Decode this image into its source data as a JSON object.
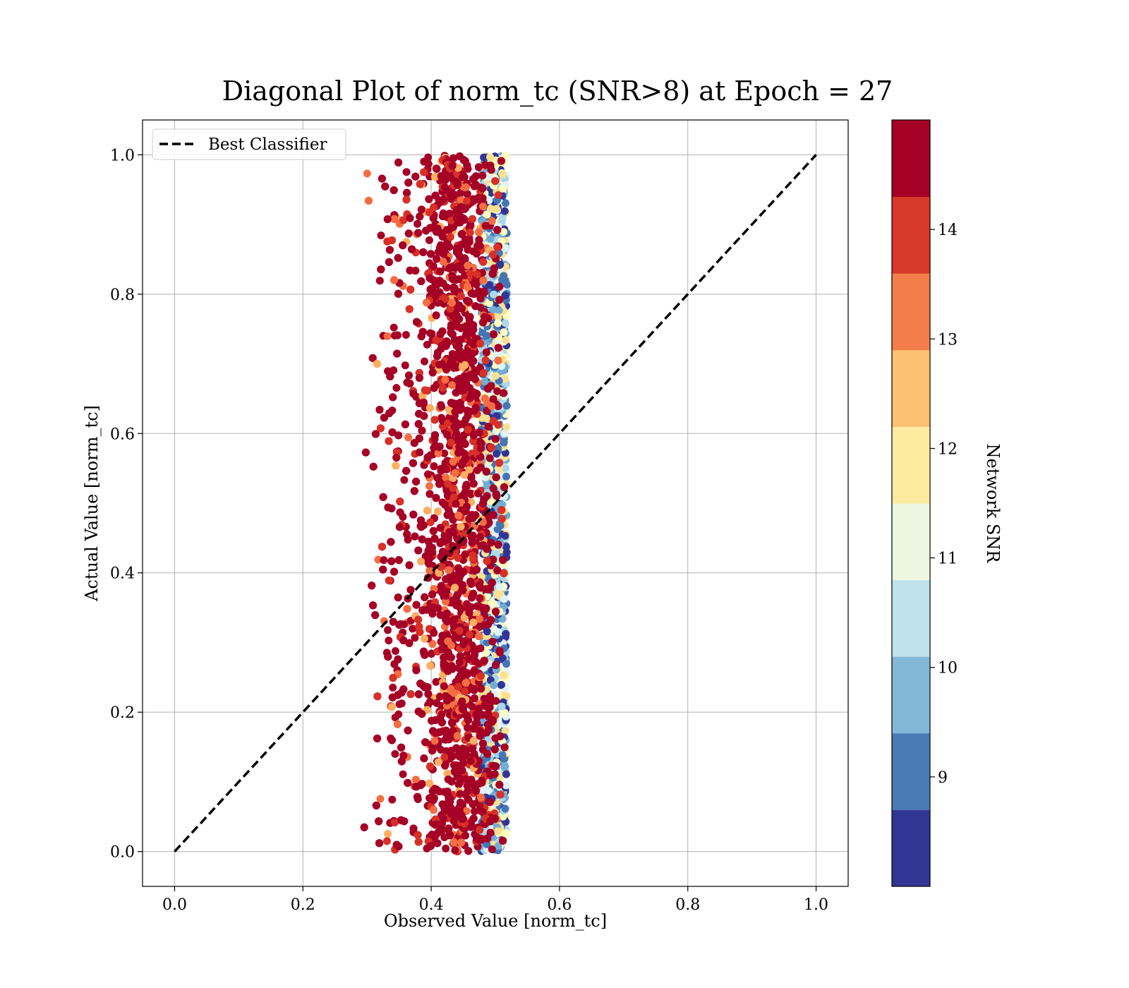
{
  "chart_data": {
    "type": "scatter",
    "title": "Diagonal Plot of norm_tc (SNR>8) at Epoch = 27",
    "xlabel": "Observed Value [norm_tc]",
    "ylabel": "Actual Value [norm_tc]",
    "xlim": [
      -0.05,
      1.05
    ],
    "ylim": [
      -0.05,
      1.05
    ],
    "xticks": [
      "0.0",
      "0.2",
      "0.4",
      "0.6",
      "0.8",
      "1.0"
    ],
    "yticks": [
      "0.0",
      "0.2",
      "0.4",
      "0.6",
      "0.8",
      "1.0"
    ],
    "grid": true,
    "legend": {
      "location": "upper-left",
      "entries": [
        "Best Classifier"
      ]
    },
    "reference_line": {
      "name": "Best Classifier",
      "x": [
        0.0,
        1.0
      ],
      "y": [
        0.0,
        1.0
      ],
      "style": "dashed",
      "color": "#000000"
    },
    "scatter": {
      "description_x_range": [
        0.3,
        0.52
      ],
      "y_range": [
        0.0,
        1.0
      ],
      "dense_core_x_range": [
        0.4,
        0.5
      ],
      "dense_color": "#a50026"
    },
    "colorbar": {
      "label": "Network SNR",
      "range": [
        8,
        15
      ],
      "ticks": [
        "9",
        "10",
        "11",
        "12",
        "13",
        "14"
      ],
      "colors": [
        "#313695",
        "#4575b4",
        "#74add1",
        "#abd9e9",
        "#e0f3f8",
        "#ffffbf",
        "#fee090",
        "#fdae61",
        "#f46d43",
        "#d73027",
        "#a50026"
      ],
      "bands": [
        "#313695",
        "#4a7bb7",
        "#82b7d6",
        "#c0e2ec",
        "#edf6e1",
        "#feeba2",
        "#fdc174",
        "#f57d4a",
        "#d7392a",
        "#a50026"
      ]
    }
  }
}
